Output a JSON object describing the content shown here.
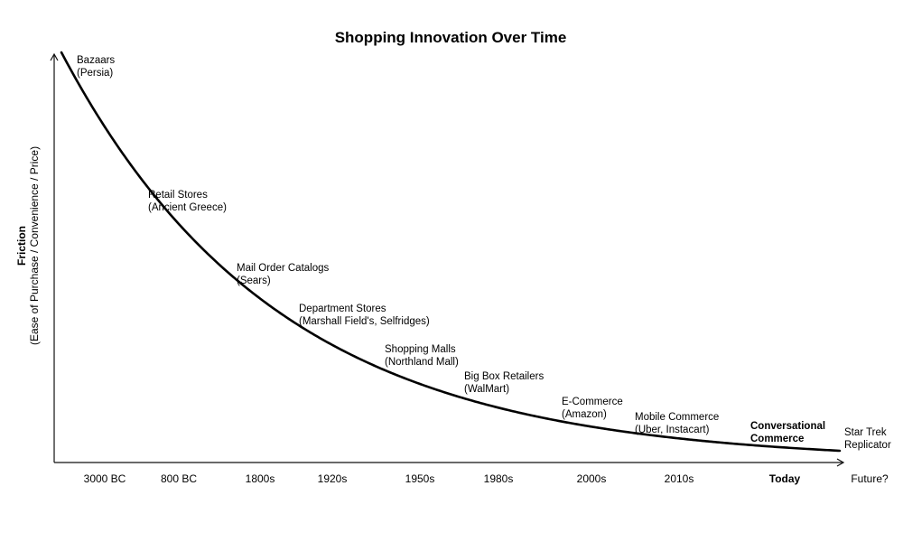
{
  "chart_data": {
    "type": "line",
    "title": "Shopping Innovation Over Time",
    "ylabel": "Friction",
    "ylabel_sub": "(Ease of Purchase / Convenience / Price)",
    "xlabel": "",
    "x_ticks": [
      {
        "label": "3000 BC",
        "bold": false
      },
      {
        "label": "800 BC",
        "bold": false
      },
      {
        "label": "1800s",
        "bold": false
      },
      {
        "label": "1920s",
        "bold": false
      },
      {
        "label": "1950s",
        "bold": false
      },
      {
        "label": "1980s",
        "bold": false
      },
      {
        "label": "2000s",
        "bold": false
      },
      {
        "label": "2010s",
        "bold": false
      },
      {
        "label": "Today",
        "bold": true
      },
      {
        "label": "Future?",
        "bold": false
      }
    ],
    "curve": "decaying friction curve, high at left, approaching a floor at right",
    "annotations": [
      {
        "line1": "Bazaars",
        "line2": "(Persia)",
        "bold": false
      },
      {
        "line1": "Retail Stores",
        "line2": "(Ancient Greece)",
        "bold": false
      },
      {
        "line1": "Mail Order Catalogs",
        "line2": "(Sears)",
        "bold": false
      },
      {
        "line1": "Department Stores",
        "line2": "(Marshall Field's, Selfridges)",
        "bold": false
      },
      {
        "line1": "Shopping Malls",
        "line2": "(Northland Mall)",
        "bold": false
      },
      {
        "line1": "Big Box Retailers",
        "line2": "(WalMart)",
        "bold": false
      },
      {
        "line1": "E-Commerce",
        "line2": "(Amazon)",
        "bold": false
      },
      {
        "line1": "Mobile Commerce",
        "line2": "(Uber, Instacart)",
        "bold": false
      },
      {
        "line1": "Conversational",
        "line2": "Commerce",
        "bold": true
      },
      {
        "line1": "Star Trek",
        "line2": "Replicator",
        "bold": false
      }
    ],
    "grid": false,
    "legend": "none"
  }
}
